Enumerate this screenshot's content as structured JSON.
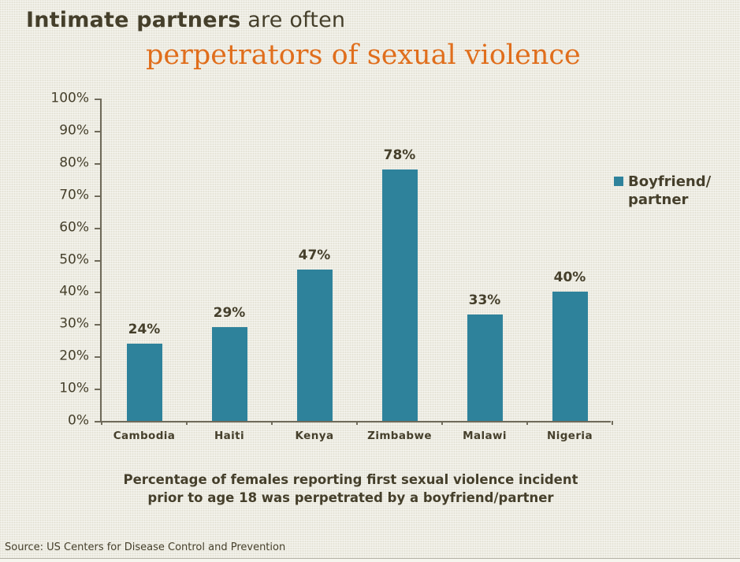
{
  "title": {
    "line1_bold": "Intimate partners",
    "line1_rest": " are often",
    "line2": "perpetrators of sexual violence"
  },
  "legend": {
    "line1": "Boyfriend/",
    "line2": "partner"
  },
  "caption": {
    "line1": "Percentage of females reporting first sexual violence incident",
    "line2": "prior to age 18 was perpetrated by a boyfriend/partner"
  },
  "source": {
    "text": "Source: US Centers for Disease Control and Prevention"
  },
  "colors": {
    "background": "#edece2",
    "bar": "#2e829b",
    "accent_orange": "#e06e1c",
    "text_olive": "#453f2b",
    "axis": "#6f6a5a"
  },
  "chart_data": {
    "type": "bar",
    "title": "Intimate partners are often perpetrators of sexual violence",
    "categories": [
      "Cambodia",
      "Haiti",
      "Kenya",
      "Zimbabwe",
      "Malawi",
      "Nigeria"
    ],
    "values": [
      24,
      29,
      47,
      78,
      33,
      40
    ],
    "data_labels": [
      "24%",
      "29%",
      "47%",
      "78%",
      "33%",
      "40%"
    ],
    "series": [
      {
        "name": "Boyfriend/partner",
        "values": [
          24,
          29,
          47,
          78,
          33,
          40
        ]
      }
    ],
    "legend_entries": [
      "Boyfriend/partner"
    ],
    "legend_position": "right",
    "y_ticks": [
      "0%",
      "10%",
      "20%",
      "30%",
      "40%",
      "50%",
      "60%",
      "70%",
      "80%",
      "90%",
      "100%"
    ],
    "ylim": [
      0,
      100
    ],
    "grid": false,
    "xlabel": "",
    "ylabel": ""
  }
}
